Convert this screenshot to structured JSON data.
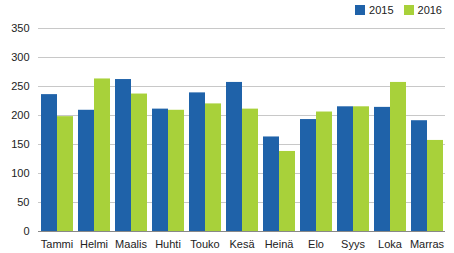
{
  "chart_data": {
    "type": "bar",
    "categories": [
      "Tammi",
      "Helmi",
      "Maalis",
      "Huhti",
      "Touko",
      "Kesä",
      "Heinä",
      "Elo",
      "Syys",
      "Loka",
      "Marras"
    ],
    "series": [
      {
        "name": "2015",
        "color": "#1f62a9",
        "values": [
          236,
          209,
          262,
          211,
          239,
          257,
          163,
          193,
          215,
          214,
          191
        ]
      },
      {
        "name": "2016",
        "color": "#a8d13a",
        "values": [
          198,
          263,
          237,
          209,
          220,
          211,
          138,
          206,
          215,
          257,
          157
        ]
      }
    ],
    "ylim": [
      0,
      350
    ],
    "yticks": [
      0,
      50,
      100,
      150,
      200,
      250,
      300,
      350
    ],
    "grid": true,
    "legend": "top-right"
  }
}
